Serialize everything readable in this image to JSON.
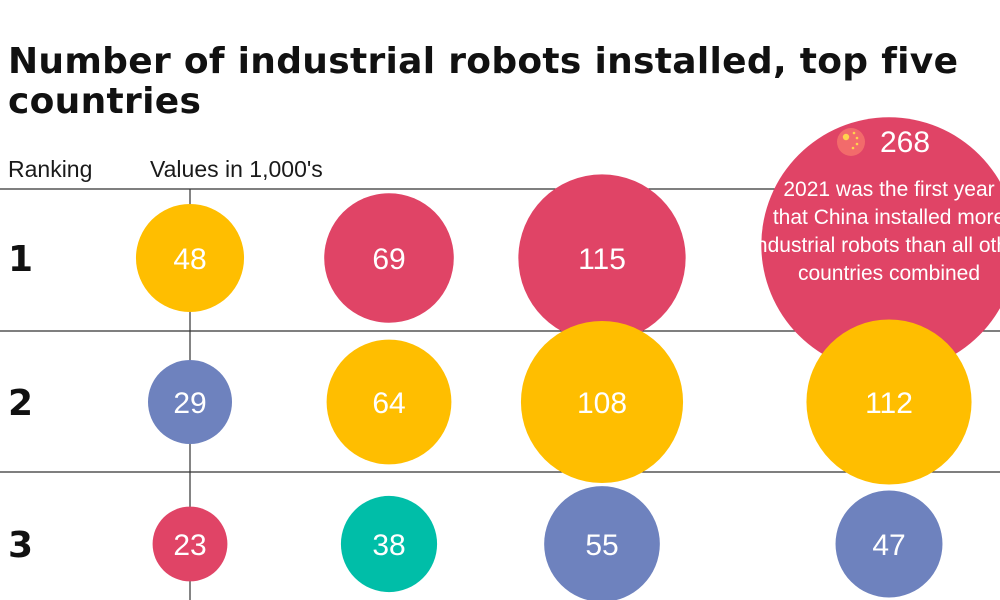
{
  "title": "Number of industrial robots installed, top five countries",
  "headers": {
    "ranking": "Ranking",
    "values": "Values in 1,000's"
  },
  "colors": {
    "red": "#e04466",
    "yellow": "#ffbe00",
    "blue": "#6e82be",
    "teal": "#00bea8",
    "line": "#333333",
    "text": "#ffffff"
  },
  "callout": {
    "value": "268",
    "note_lines": [
      "2021 was the first year",
      "that China installed more",
      "industrial robots than all other",
      "countries combined"
    ],
    "icon": "china-flag-icon"
  },
  "chart_data": {
    "type": "bubble-ranking",
    "title": "Number of industrial robots installed, top five countries",
    "unit": "Values in 1,000's",
    "ranks": [
      "1",
      "2",
      "3"
    ],
    "columns": [
      {
        "points": [
          {
            "rank": 1,
            "value": 48,
            "label": "48",
            "color": "yellow"
          },
          {
            "rank": 2,
            "value": 29,
            "label": "29",
            "color": "blue"
          },
          {
            "rank": 3,
            "value": 23,
            "label": "23",
            "color": "red"
          }
        ]
      },
      {
        "points": [
          {
            "rank": 1,
            "value": 69,
            "label": "69",
            "color": "red"
          },
          {
            "rank": 2,
            "value": 64,
            "label": "64",
            "color": "yellow"
          },
          {
            "rank": 3,
            "value": 38,
            "label": "38",
            "color": "teal"
          }
        ]
      },
      {
        "points": [
          {
            "rank": 1,
            "value": 115,
            "label": "115",
            "color": "red"
          },
          {
            "rank": 2,
            "value": 108,
            "label": "108",
            "color": "yellow"
          },
          {
            "rank": 3,
            "value": 55,
            "label": "55",
            "color": "blue"
          }
        ]
      },
      {
        "points": [
          {
            "rank": 1,
            "value": 268,
            "label": "268",
            "color": "red"
          },
          {
            "rank": 2,
            "value": 112,
            "label": "112",
            "color": "yellow"
          },
          {
            "rank": 3,
            "value": 47,
            "label": "47",
            "color": "blue"
          }
        ]
      }
    ]
  }
}
